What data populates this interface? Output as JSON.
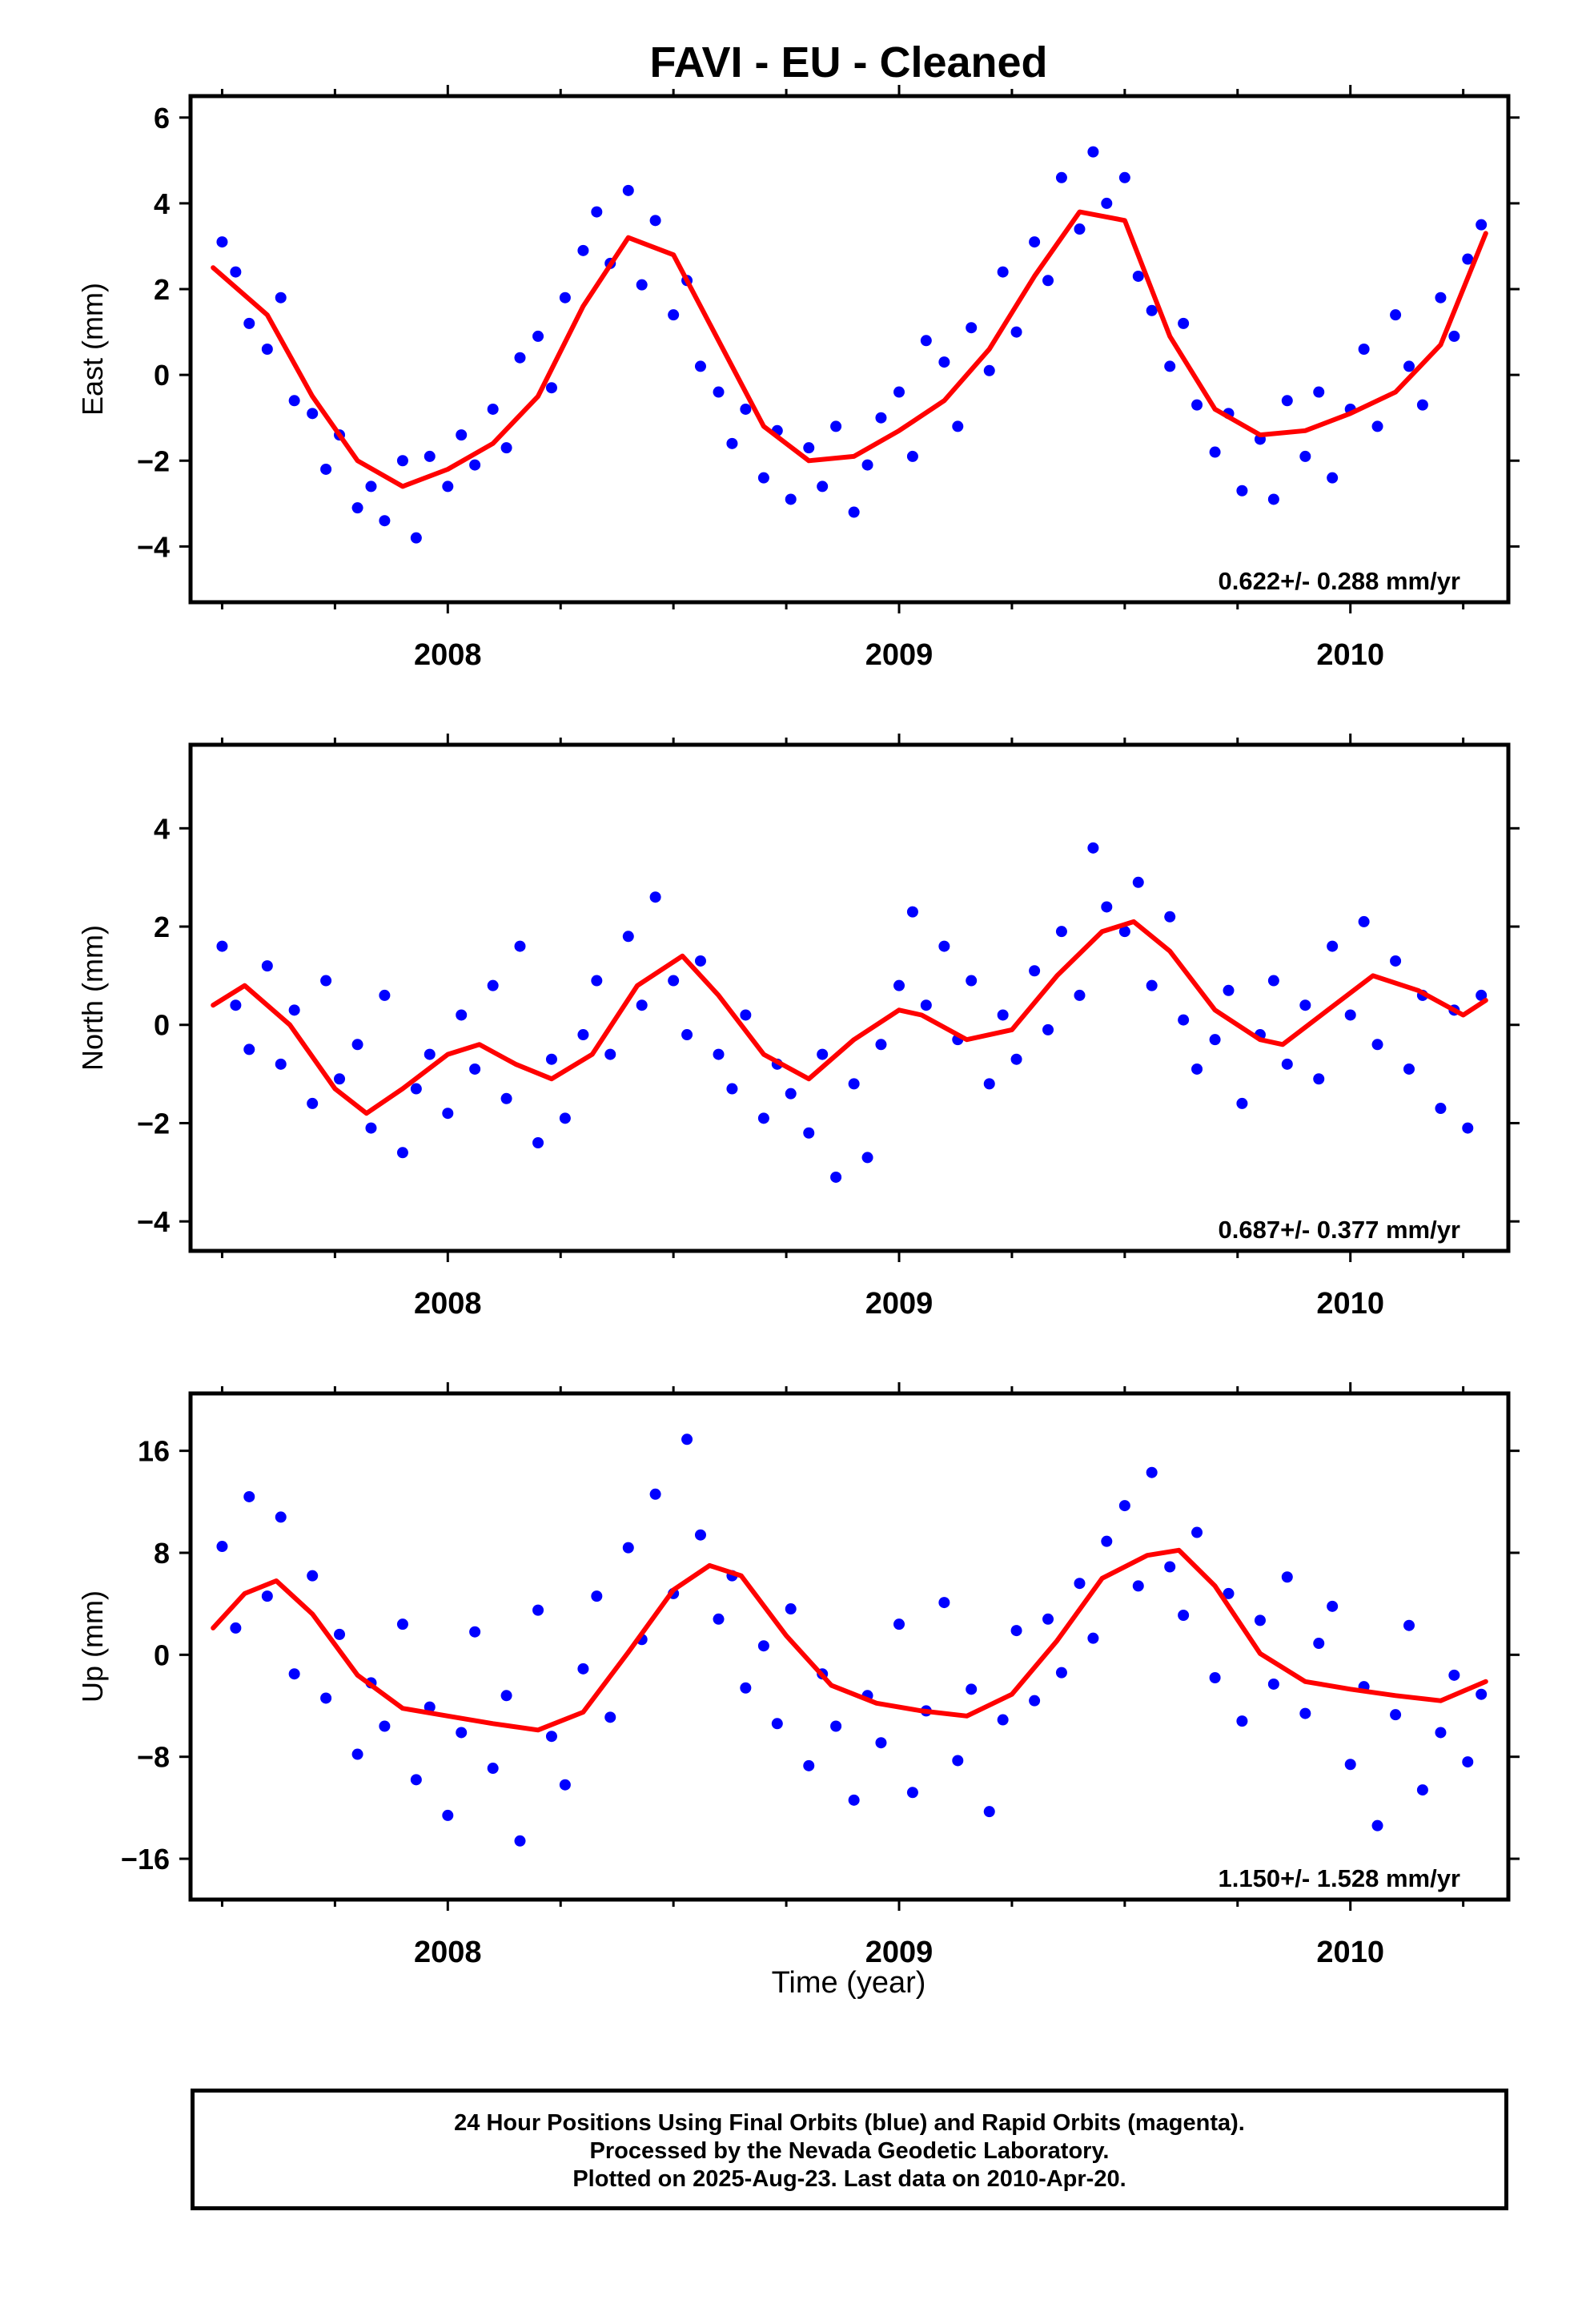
{
  "title": "FAVI  - EU - Cleaned",
  "x_axis_label": "Time (year)",
  "footer": {
    "line1": "24 Hour Positions Using Final Orbits (blue) and Rapid Orbits (magenta).",
    "line2": "Processed by the Nevada Geodetic Laboratory.",
    "line3": "Plotted on 2025-Aug-23. Last data on 2010-Apr-20."
  },
  "colors": {
    "observations": "#0000ff",
    "model_fit": "#ff0000",
    "axes": "#000000"
  },
  "chart_data": [
    {
      "type": "scatter",
      "panel": "east",
      "ylabel": "East (mm)",
      "xlim": [
        2007.43,
        2010.35
      ],
      "ylim": [
        -5.3,
        6.5
      ],
      "yticks": [
        -4,
        -2,
        0,
        2,
        4,
        6
      ],
      "xticks": [
        2008,
        2009,
        2010
      ],
      "grid": false,
      "annotation": "0.622+/- 0.288 mm/yr",
      "model_curve": {
        "x": [
          2007.48,
          2007.6,
          2007.7,
          2007.8,
          2007.9,
          2008.0,
          2008.1,
          2008.2,
          2008.3,
          2008.4,
          2008.5,
          2008.6,
          2008.7,
          2008.8,
          2008.9,
          2009.0,
          2009.1,
          2009.2,
          2009.3,
          2009.4,
          2009.5,
          2009.6,
          2009.7,
          2009.8,
          2009.9,
          2010.0,
          2010.1,
          2010.2,
          2010.3
        ],
        "y": [
          2.5,
          1.4,
          -0.5,
          -2.0,
          -2.6,
          -2.2,
          -1.6,
          -0.5,
          1.6,
          3.2,
          2.8,
          0.8,
          -1.2,
          -2.0,
          -1.9,
          -1.3,
          -0.6,
          0.6,
          2.3,
          3.8,
          3.6,
          0.9,
          -0.8,
          -1.4,
          -1.3,
          -0.9,
          -0.4,
          0.7,
          3.3
        ]
      },
      "points": {
        "x": [
          2007.5,
          2007.53,
          2007.56,
          2007.6,
          2007.63,
          2007.66,
          2007.7,
          2007.73,
          2007.76,
          2007.8,
          2007.83,
          2007.86,
          2007.9,
          2007.93,
          2007.96,
          2008.0,
          2008.03,
          2008.06,
          2008.1,
          2008.13,
          2008.16,
          2008.2,
          2008.23,
          2008.26,
          2008.3,
          2008.33,
          2008.36,
          2008.4,
          2008.43,
          2008.46,
          2008.5,
          2008.53,
          2008.56,
          2008.6,
          2008.63,
          2008.66,
          2008.7,
          2008.73,
          2008.76,
          2008.8,
          2008.83,
          2008.86,
          2008.9,
          2008.93,
          2008.96,
          2009.0,
          2009.03,
          2009.06,
          2009.1,
          2009.13,
          2009.16,
          2009.2,
          2009.23,
          2009.26,
          2009.3,
          2009.33,
          2009.36,
          2009.4,
          2009.43,
          2009.46,
          2009.5,
          2009.53,
          2009.56,
          2009.6,
          2009.63,
          2009.66,
          2009.7,
          2009.73,
          2009.76,
          2009.8,
          2009.83,
          2009.86,
          2009.9,
          2009.93,
          2009.96,
          2010.0,
          2010.03,
          2010.06,
          2010.1,
          2010.13,
          2010.16,
          2010.2,
          2010.23,
          2010.26,
          2010.29
        ],
        "y": [
          3.1,
          2.4,
          1.2,
          0.6,
          1.8,
          -0.6,
          -0.9,
          -2.2,
          -1.4,
          -3.1,
          -2.6,
          -3.4,
          -2.0,
          -3.8,
          -1.9,
          -2.6,
          -1.4,
          -2.1,
          -0.8,
          -1.7,
          0.4,
          0.9,
          -0.3,
          1.8,
          2.9,
          3.8,
          2.6,
          4.3,
          2.1,
          3.6,
          1.4,
          2.2,
          0.2,
          -0.4,
          -1.6,
          -0.8,
          -2.4,
          -1.3,
          -2.9,
          -1.7,
          -2.6,
          -1.2,
          -3.2,
          -2.1,
          -1.0,
          -0.4,
          -1.9,
          0.8,
          0.3,
          -1.2,
          1.1,
          0.1,
          2.4,
          1.0,
          3.1,
          2.2,
          4.6,
          3.4,
          5.2,
          4.0,
          4.6,
          2.3,
          1.5,
          0.2,
          1.2,
          -0.7,
          -1.8,
          -0.9,
          -2.7,
          -1.5,
          -2.9,
          -0.6,
          -1.9,
          -0.4,
          -2.4,
          -0.8,
          0.6,
          -1.2,
          1.4,
          0.2,
          -0.7,
          1.8,
          0.9,
          2.7,
          3.5
        ]
      }
    },
    {
      "type": "scatter",
      "panel": "north",
      "ylabel": "North (mm)",
      "xlim": [
        2007.43,
        2010.35
      ],
      "ylim": [
        -4.6,
        5.7
      ],
      "yticks": [
        -4,
        -2,
        0,
        2,
        4
      ],
      "xticks": [
        2008,
        2009,
        2010
      ],
      "grid": false,
      "annotation": "0.687+/- 0.377 mm/yr",
      "model_curve": {
        "x": [
          2007.48,
          2007.55,
          2007.65,
          2007.75,
          2007.82,
          2007.9,
          2008.0,
          2008.07,
          2008.15,
          2008.23,
          2008.32,
          2008.42,
          2008.52,
          2008.6,
          2008.7,
          2008.8,
          2008.9,
          2009.0,
          2009.05,
          2009.15,
          2009.25,
          2009.35,
          2009.45,
          2009.52,
          2009.6,
          2009.7,
          2009.8,
          2009.85,
          2009.95,
          2010.05,
          2010.15,
          2010.25,
          2010.3
        ],
        "y": [
          0.4,
          0.8,
          0.0,
          -1.3,
          -1.8,
          -1.3,
          -0.6,
          -0.4,
          -0.8,
          -1.1,
          -0.6,
          0.8,
          1.4,
          0.6,
          -0.6,
          -1.1,
          -0.3,
          0.3,
          0.2,
          -0.3,
          -0.1,
          1.0,
          1.9,
          2.1,
          1.5,
          0.3,
          -0.3,
          -0.4,
          0.3,
          1.0,
          0.7,
          0.2,
          0.5
        ]
      },
      "points": {
        "x": [
          2007.5,
          2007.53,
          2007.56,
          2007.6,
          2007.63,
          2007.66,
          2007.7,
          2007.73,
          2007.76,
          2007.8,
          2007.83,
          2007.86,
          2007.9,
          2007.93,
          2007.96,
          2008.0,
          2008.03,
          2008.06,
          2008.1,
          2008.13,
          2008.16,
          2008.2,
          2008.23,
          2008.26,
          2008.3,
          2008.33,
          2008.36,
          2008.4,
          2008.43,
          2008.46,
          2008.5,
          2008.53,
          2008.56,
          2008.6,
          2008.63,
          2008.66,
          2008.7,
          2008.73,
          2008.76,
          2008.8,
          2008.83,
          2008.86,
          2008.9,
          2008.93,
          2008.96,
          2009.0,
          2009.03,
          2009.06,
          2009.1,
          2009.13,
          2009.16,
          2009.2,
          2009.23,
          2009.26,
          2009.3,
          2009.33,
          2009.36,
          2009.4,
          2009.43,
          2009.46,
          2009.5,
          2009.53,
          2009.56,
          2009.6,
          2009.63,
          2009.66,
          2009.7,
          2009.73,
          2009.76,
          2009.8,
          2009.83,
          2009.86,
          2009.9,
          2009.93,
          2009.96,
          2010.0,
          2010.03,
          2010.06,
          2010.1,
          2010.13,
          2010.16,
          2010.2,
          2010.23,
          2010.26,
          2010.29
        ],
        "y": [
          1.6,
          0.4,
          -0.5,
          1.2,
          -0.8,
          0.3,
          -1.6,
          0.9,
          -1.1,
          -0.4,
          -2.1,
          0.6,
          -2.6,
          -1.3,
          -0.6,
          -1.8,
          0.2,
          -0.9,
          0.8,
          -1.5,
          1.6,
          -2.4,
          -0.7,
          -1.9,
          -0.2,
          0.9,
          -0.6,
          1.8,
          0.4,
          2.6,
          0.9,
          -0.2,
          1.3,
          -0.6,
          -1.3,
          0.2,
          -1.9,
          -0.8,
          -1.4,
          -2.2,
          -0.6,
          -3.1,
          -1.2,
          -2.7,
          -0.4,
          0.8,
          2.3,
          0.4,
          1.6,
          -0.3,
          0.9,
          -1.2,
          0.2,
          -0.7,
          1.1,
          -0.1,
          1.9,
          0.6,
          3.6,
          2.4,
          1.9,
          2.9,
          0.8,
          2.2,
          0.1,
          -0.9,
          -0.3,
          0.7,
          -1.6,
          -0.2,
          0.9,
          -0.8,
          0.4,
          -1.1,
          1.6,
          0.2,
          2.1,
          -0.4,
          1.3,
          -0.9,
          0.6,
          -1.7,
          0.3,
          -2.1,
          0.6
        ]
      }
    },
    {
      "type": "scatter",
      "panel": "up",
      "ylabel": "Up (mm)",
      "xlim": [
        2007.43,
        2010.35
      ],
      "ylim": [
        -19.2,
        20.5
      ],
      "yticks": [
        -16,
        -8,
        0,
        8,
        16
      ],
      "xticks": [
        2008,
        2009,
        2010
      ],
      "grid": false,
      "annotation": "1.150+/- 1.528 mm/yr",
      "model_curve": {
        "x": [
          2007.48,
          2007.55,
          2007.62,
          2007.7,
          2007.8,
          2007.9,
          2008.0,
          2008.1,
          2008.2,
          2008.3,
          2008.4,
          2008.5,
          2008.58,
          2008.65,
          2008.75,
          2008.85,
          2008.95,
          2009.05,
          2009.15,
          2009.25,
          2009.35,
          2009.45,
          2009.55,
          2009.62,
          2009.7,
          2009.8,
          2009.9,
          2010.0,
          2010.1,
          2010.2,
          2010.3
        ],
        "y": [
          2.1,
          4.8,
          5.8,
          3.2,
          -1.6,
          -4.2,
          -4.8,
          -5.4,
          -5.9,
          -4.5,
          0.2,
          5.1,
          7.0,
          6.2,
          1.5,
          -2.4,
          -3.8,
          -4.4,
          -4.8,
          -3.1,
          1.1,
          6.0,
          7.8,
          8.2,
          5.4,
          0.1,
          -2.1,
          -2.7,
          -3.2,
          -3.6,
          -2.1
        ]
      },
      "points": {
        "x": [
          2007.5,
          2007.53,
          2007.56,
          2007.6,
          2007.63,
          2007.66,
          2007.7,
          2007.73,
          2007.76,
          2007.8,
          2007.83,
          2007.86,
          2007.9,
          2007.93,
          2007.96,
          2008.0,
          2008.03,
          2008.06,
          2008.1,
          2008.13,
          2008.16,
          2008.2,
          2008.23,
          2008.26,
          2008.3,
          2008.33,
          2008.36,
          2008.4,
          2008.43,
          2008.46,
          2008.5,
          2008.53,
          2008.56,
          2008.6,
          2008.63,
          2008.66,
          2008.7,
          2008.73,
          2008.76,
          2008.8,
          2008.83,
          2008.86,
          2008.9,
          2008.93,
          2008.96,
          2009.0,
          2009.03,
          2009.06,
          2009.1,
          2009.13,
          2009.16,
          2009.2,
          2009.23,
          2009.26,
          2009.3,
          2009.33,
          2009.36,
          2009.4,
          2009.43,
          2009.46,
          2009.5,
          2009.53,
          2009.56,
          2009.6,
          2009.63,
          2009.66,
          2009.7,
          2009.73,
          2009.76,
          2009.8,
          2009.83,
          2009.86,
          2009.9,
          2009.93,
          2009.96,
          2010.0,
          2010.03,
          2010.06,
          2010.1,
          2010.13,
          2010.16,
          2010.2,
          2010.23,
          2010.26,
          2010.29
        ],
        "y": [
          8.5,
          2.1,
          12.4,
          4.6,
          10.8,
          -1.5,
          6.2,
          -3.4,
          1.6,
          -7.8,
          -2.2,
          -5.6,
          2.4,
          -9.8,
          -4.1,
          -12.6,
          -6.1,
          1.8,
          -8.9,
          -3.2,
          -14.6,
          3.5,
          -6.4,
          -10.2,
          -1.1,
          4.6,
          -4.9,
          8.4,
          1.2,
          12.6,
          4.8,
          16.9,
          9.4,
          2.8,
          6.2,
          -2.6,
          0.7,
          -5.4,
          3.6,
          -8.7,
          -1.5,
          -5.6,
          -11.4,
          -3.2,
          -6.9,
          2.4,
          -10.8,
          -4.4,
          4.1,
          -8.3,
          -2.7,
          -12.3,
          -5.1,
          1.9,
          -3.6,
          2.8,
          -1.4,
          5.6,
          1.3,
          8.9,
          11.7,
          5.4,
          14.3,
          6.9,
          3.1,
          9.6,
          -1.8,
          4.8,
          -5.2,
          2.7,
          -2.3,
          6.1,
          -4.6,
          0.9,
          3.8,
          -8.6,
          -2.5,
          -13.4,
          -4.7,
          2.3,
          -10.6,
          -6.1,
          -1.6,
          -8.4,
          -3.1
        ]
      }
    }
  ]
}
